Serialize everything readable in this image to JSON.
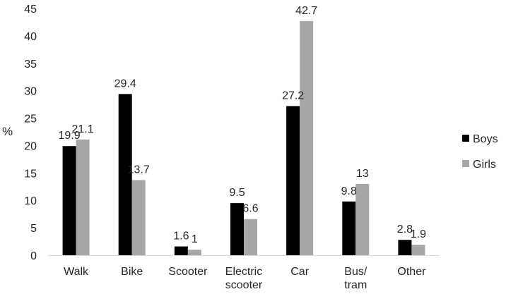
{
  "chart_data": {
    "type": "bar",
    "categories": [
      [
        "Walk"
      ],
      [
        "Bike"
      ],
      [
        "Scooter"
      ],
      [
        "Electric",
        "scooter"
      ],
      [
        "Car"
      ],
      [
        "Bus/",
        "tram"
      ],
      [
        "Other"
      ]
    ],
    "series": [
      {
        "name": "Boys",
        "values": [
          19.9,
          29.4,
          1.6,
          9.5,
          27.2,
          9.8,
          2.8
        ],
        "labels": [
          "19.9",
          "29.4",
          "1.6",
          "9.5",
          "27.2",
          "9.8",
          "2.8"
        ],
        "color": "#000000"
      },
      {
        "name": "Girls",
        "values": [
          21.1,
          13.7,
          1,
          6.6,
          42.7,
          13,
          1.9
        ],
        "labels": [
          "21.1",
          "13.7",
          "1",
          "6.6",
          "42.7",
          "13",
          "1.9"
        ],
        "color": "#a6a6a6"
      }
    ],
    "ylabel": "%",
    "xlabel": "",
    "ylim": [
      0,
      45
    ],
    "yticks": [
      0,
      5,
      10,
      15,
      20,
      25,
      30,
      35,
      40,
      45
    ],
    "grid": false,
    "legend_position": "right"
  }
}
